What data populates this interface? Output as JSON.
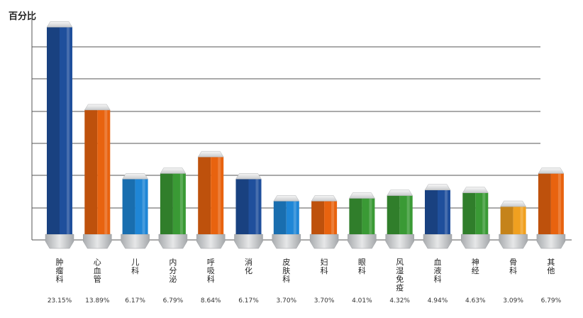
{
  "chart_data": {
    "type": "bar",
    "ylabel": "百分比",
    "categories": [
      "肿瘤科",
      "心血管",
      "儿科",
      "内分泌",
      "呼吸科",
      "消化",
      "皮肤科",
      "妇科",
      "眼科",
      "风湿免疫",
      "血液科",
      "神经",
      "骨科",
      "其他"
    ],
    "values": [
      23.15,
      13.89,
      6.17,
      6.79,
      8.64,
      6.17,
      3.7,
      3.7,
      4.01,
      4.32,
      4.94,
      4.63,
      3.09,
      6.79
    ],
    "value_labels": [
      "23.15%",
      "13.89%",
      "6.17%",
      "6.79%",
      "8.64%",
      "6.17%",
      "3.70%",
      "3.70%",
      "4.01%",
      "4.32%",
      "4.94%",
      "4.63%",
      "3.09%",
      "6.79%"
    ],
    "bar_colors": [
      "#1f4f9c",
      "#e8630f",
      "#1f86d6",
      "#3a9a35",
      "#e8630f",
      "#1f4f9c",
      "#1f86d6",
      "#e8630f",
      "#3a9a35",
      "#3a9a35",
      "#1f4f9c",
      "#3a9a35",
      "#f0a020",
      "#e8630f"
    ],
    "ylim": [
      0,
      25
    ],
    "grid": true
  }
}
